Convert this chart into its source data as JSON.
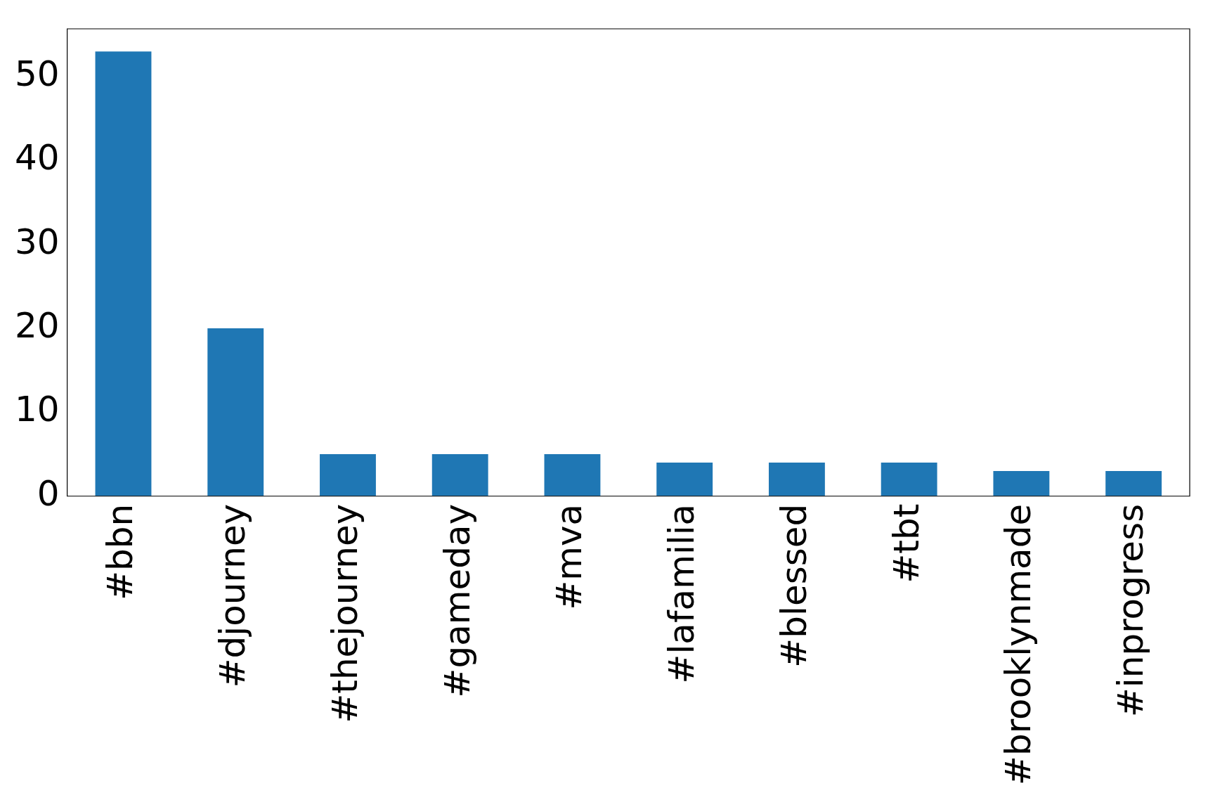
{
  "chart_data": {
    "type": "bar",
    "categories": [
      "#bbn",
      "#djourney",
      "#thejourney",
      "#gameday",
      "#mva",
      "#lafamilia",
      "#blessed",
      "#tbt",
      "#brooklynmade",
      "#inprogress"
    ],
    "values": [
      53,
      20,
      5,
      5,
      5,
      4,
      4,
      4,
      3,
      3
    ],
    "color": "#1f77b4",
    "ylim": [
      0,
      55.7
    ],
    "yticks": [
      0,
      10,
      20,
      30,
      40,
      50
    ],
    "grid": false,
    "legend": false
  }
}
